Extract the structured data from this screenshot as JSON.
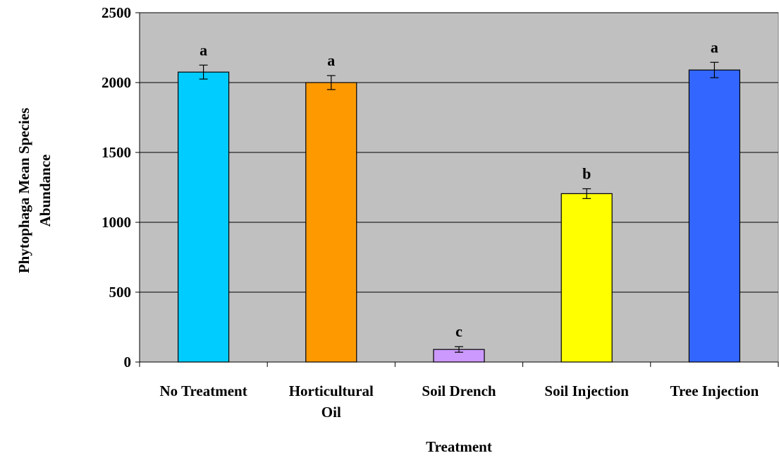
{
  "chart_data": {
    "type": "bar",
    "title": "",
    "xlabel": "Treatment",
    "ylabel": "Phytophaga Mean Species Abundance",
    "ylim": [
      0,
      2500
    ],
    "yticks": [
      0,
      500,
      1000,
      1500,
      2000,
      2500
    ],
    "grid": true,
    "legend": "none",
    "categories": [
      {
        "lines": [
          "No Treatment"
        ]
      },
      {
        "lines": [
          "Horticultural",
          "Oil"
        ]
      },
      {
        "lines": [
          "Soil Drench"
        ]
      },
      {
        "lines": [
          "Soil Injection"
        ]
      },
      {
        "lines": [
          "Tree Injection"
        ]
      }
    ],
    "values": [
      2075,
      2000,
      90,
      1205,
      2090
    ],
    "errors": [
      50,
      50,
      20,
      35,
      55
    ],
    "significance": [
      "a",
      "a",
      "c",
      "b",
      "a"
    ],
    "colors": [
      "#00ccff",
      "#ff9900",
      "#cc99ff",
      "#ffff00",
      "#3366ff"
    ],
    "plot_background": "#c0c0c0"
  }
}
